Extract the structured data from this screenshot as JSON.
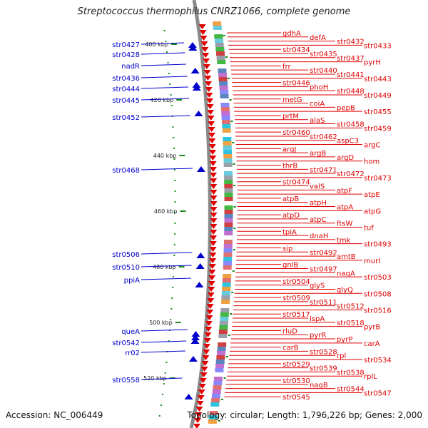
{
  "title": "Streptococcus thermophilus CNRZ1066, complete genome",
  "footer": {
    "accession": "Accession: NC_006449",
    "summary": "Topology: circular; Length: 1,796,226 bp; Genes: 2,000"
  },
  "colors": {
    "forward": "#e00000",
    "reverse": "#0000cc",
    "backbone": "#8a8a8a",
    "dot": "#1a8a1a"
  },
  "kbp_ticks": [
    {
      "label": "400 kbp",
      "pos": 400
    },
    {
      "label": "420 kbp",
      "pos": 420
    },
    {
      "label": "440 kbp",
      "pos": 440
    },
    {
      "label": "460 kbp",
      "pos": 460
    },
    {
      "label": "480 kbp",
      "pos": 480
    },
    {
      "label": "500 kbp",
      "pos": 500
    },
    {
      "label": "520 kbp",
      "pos": 520
    }
  ],
  "left_labels": [
    "str0427",
    "str0428",
    "nadR",
    "str0436",
    "str0444",
    "str0445",
    "str0452",
    "str0468",
    "str0506",
    "str0510",
    "ppiA",
    "queA",
    "str0542",
    "rr02",
    "str0558"
  ],
  "right_labels": [
    "gdhA",
    "defA",
    "str0432",
    "str0433",
    "str0434",
    "str0435",
    "str0437",
    "pyrH",
    "frr",
    "str0440",
    "str0441",
    "str0443",
    "str0446",
    "phoH",
    "str0448",
    "str0449",
    "metG",
    "coiA",
    "pepB",
    "str0455",
    "prtM",
    "alaS",
    "str0458",
    "str0459",
    "str0460",
    "str0462",
    "aspC3",
    "argC",
    "argJ",
    "argB",
    "argD",
    "hom",
    "thrB",
    "str0471",
    "str0472",
    "str0473",
    "str0474",
    "valS",
    "atpF",
    "atpE",
    "atpB",
    "atpH",
    "atpA",
    "atpG",
    "atpD",
    "atpC",
    "ftsW",
    "tuf",
    "tpiA",
    "dnaH",
    "tmk",
    "str0493",
    "sip",
    "str0492",
    "amtB",
    "murI",
    "gnlB",
    "str0497",
    "nagA",
    "str0503",
    "str0504",
    "glyS",
    "glyQ",
    "str0508",
    "str0509",
    "str0511",
    "str0512",
    "str0516",
    "str0517",
    "lspA",
    "str0518",
    "pyrB",
    "rluD",
    "pyrR",
    "pyrP",
    "carA",
    "carB",
    "str0528",
    "rpl",
    "str0534",
    "str0529",
    "str0539",
    "str0538",
    "rplL",
    "str0530",
    "nagB",
    "str0544",
    "str0547",
    "str0545"
  ]
}
